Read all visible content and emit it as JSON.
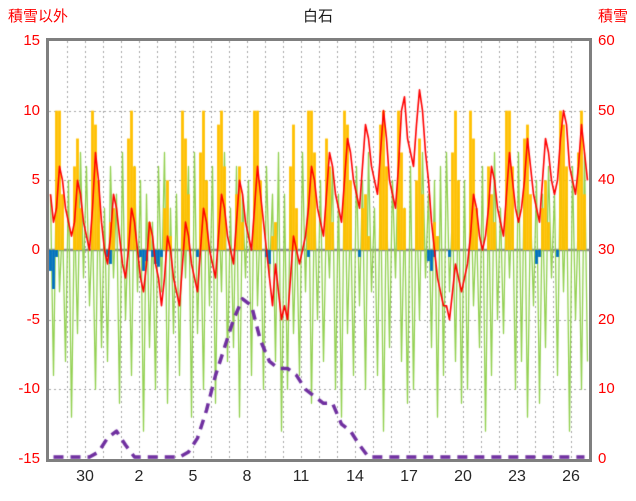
{
  "header": {
    "left_axis_label": "積雪以外",
    "title": "白石",
    "right_axis_label": "積雪"
  },
  "colors": {
    "frame": "#7f7f7f",
    "grid": "#a6a6a6",
    "zero_line": "#8c8c8c",
    "y_tick_text": "#ff0000",
    "x_tick_text": "#262626",
    "temperature": "#ff0000",
    "green_series": "#92d050",
    "sunshine": "#ffc000",
    "precipitation": "#0070c0",
    "snow_depth": "#7030a0"
  },
  "chart_data": {
    "type": "line",
    "title": "白石",
    "left_axis_label": "積雪以外",
    "right_axis_label": "積雪",
    "left_ylim": [
      -15,
      15
    ],
    "right_ylim": [
      0,
      60
    ],
    "left_ticks": [
      15,
      10,
      5,
      0,
      -5,
      -10,
      -15
    ],
    "right_ticks": [
      60,
      50,
      40,
      30,
      20,
      10,
      0
    ],
    "x_tick_labels": [
      "30",
      "2",
      "5",
      "8",
      "11",
      "14",
      "17",
      "20",
      "23",
      "26"
    ],
    "x_tick_day_indices": [
      2,
      5,
      8,
      11,
      14,
      17,
      20,
      23,
      26,
      29
    ],
    "days_total": 30,
    "grid": "daily-vertical-dashed, 5-unit-horizontal-dashed, solid-zero-line",
    "legend_position": "none",
    "series": [
      {
        "name": "green-series",
        "type": "line",
        "axis": "left",
        "points_per_day": 6,
        "values": [
          4,
          -9,
          6,
          -3,
          2,
          -8,
          5,
          -12,
          3,
          -6,
          7,
          -2,
          6,
          -4,
          2,
          -10,
          5,
          -7,
          3,
          -8,
          6,
          -2,
          4,
          -11,
          7,
          -5,
          2,
          -9,
          6,
          -3,
          5,
          -13,
          4,
          -7,
          2,
          -10,
          6,
          -3,
          7,
          -11,
          3,
          -6,
          4,
          -9,
          5,
          -2,
          6,
          -12,
          7,
          -6,
          3,
          -10,
          5,
          -4,
          6,
          -11,
          4,
          -3,
          7,
          -8,
          3,
          -7,
          6,
          -12,
          4,
          -2,
          5,
          -9,
          7,
          -4,
          3,
          -10,
          6,
          -2,
          4,
          -8,
          7,
          -13,
          4,
          -10,
          5,
          -6,
          2,
          -9,
          7,
          -3,
          6,
          -11,
          4,
          -5,
          5,
          -8,
          3,
          -2,
          6,
          -10,
          4,
          -12,
          7,
          -6,
          3,
          -9,
          6,
          -4,
          5,
          -10,
          7,
          -3,
          3,
          -9,
          6,
          -13,
          4,
          -7,
          5,
          -2,
          7,
          -8,
          3,
          -11,
          6,
          -10,
          4,
          -5,
          7,
          -2,
          4,
          -7,
          5,
          -12,
          6,
          -9,
          7,
          -3,
          3,
          -8,
          5,
          -11,
          5,
          -10,
          6,
          -4,
          2,
          -7,
          6,
          -13,
          4,
          -9,
          7,
          -5,
          3,
          -6,
          5,
          -2,
          4,
          -10,
          7,
          -8,
          6,
          -12,
          3,
          -4,
          5,
          -11,
          4,
          -7,
          6,
          -2,
          4,
          -9,
          7,
          -3,
          5,
          -13,
          6,
          -5,
          3,
          -10,
          7,
          -8
        ]
      },
      {
        "name": "sunshine-bars",
        "type": "bar",
        "axis": "left",
        "points_per_day": 6,
        "values": [
          0,
          0,
          10,
          10,
          4,
          0,
          0,
          0,
          6,
          8,
          3,
          0,
          0,
          0,
          10,
          9,
          5,
          0,
          0,
          0,
          2,
          3,
          0,
          0,
          0,
          0,
          8,
          10,
          6,
          0,
          0,
          0,
          0,
          2,
          0,
          0,
          0,
          0,
          3,
          5,
          1,
          0,
          0,
          0,
          10,
          8,
          4,
          0,
          0,
          0,
          7,
          10,
          5,
          0,
          0,
          0,
          9,
          10,
          6,
          0,
          0,
          0,
          4,
          6,
          2,
          0,
          0,
          0,
          10,
          10,
          5,
          0,
          0,
          0,
          1,
          2,
          0,
          0,
          0,
          0,
          6,
          9,
          3,
          0,
          0,
          0,
          10,
          10,
          7,
          0,
          0,
          0,
          8,
          6,
          2,
          0,
          0,
          0,
          10,
          9,
          5,
          0,
          0,
          0,
          3,
          4,
          1,
          0,
          0,
          0,
          9,
          10,
          6,
          0,
          0,
          0,
          10,
          7,
          3,
          0,
          0,
          0,
          5,
          8,
          4,
          0,
          0,
          0,
          2,
          1,
          0,
          0,
          0,
          0,
          7,
          10,
          5,
          0,
          0,
          0,
          10,
          8,
          3,
          0,
          0,
          0,
          6,
          4,
          2,
          0,
          0,
          0,
          10,
          10,
          6,
          0,
          0,
          0,
          8,
          9,
          4,
          0,
          0,
          0,
          3,
          5,
          2,
          0,
          0,
          0,
          10,
          9,
          6,
          0,
          0,
          0,
          7,
          10,
          4,
          0
        ]
      },
      {
        "name": "precipitation-bars",
        "type": "bar",
        "axis": "left",
        "points_per_day": 6,
        "values": [
          -1.5,
          -2.8,
          -0.5,
          0,
          0,
          0,
          0,
          0,
          0,
          0,
          0,
          0,
          0,
          0,
          0,
          0,
          0,
          0,
          0,
          -0.5,
          -1,
          0,
          0,
          0,
          0,
          0,
          0,
          0,
          0,
          0,
          -0.5,
          -1.5,
          -0.8,
          0,
          -0.5,
          -1,
          -1.2,
          -0.5,
          0,
          0,
          0,
          0,
          0,
          0,
          0,
          0,
          0,
          0,
          0,
          -0.5,
          0,
          0,
          0,
          0,
          0,
          0,
          0,
          0,
          0,
          0,
          0,
          0,
          0,
          0,
          0,
          0,
          0,
          0,
          0,
          0,
          0,
          0,
          -0.5,
          -1,
          0,
          0,
          0,
          0,
          0,
          0,
          0,
          0,
          0,
          0,
          0,
          0,
          -0.5,
          0,
          0,
          0,
          0,
          0,
          0,
          0,
          0,
          0,
          0,
          0,
          0,
          0,
          0,
          0,
          0,
          -0.5,
          0,
          0,
          0,
          0,
          0,
          0,
          0,
          0,
          0,
          0,
          0,
          0,
          0,
          0,
          0,
          0,
          0,
          0,
          0,
          0,
          0,
          0,
          -0.8,
          -1.5,
          -0.5,
          0,
          0,
          0,
          0,
          -0.5,
          0,
          0,
          0,
          0,
          0,
          0,
          0,
          0,
          0,
          0,
          0,
          0,
          0,
          0,
          0,
          0,
          0,
          0,
          0,
          0,
          0,
          0,
          0,
          0,
          0,
          0,
          0,
          0,
          -1,
          -0.5,
          0,
          0,
          0,
          0,
          0,
          -0.5,
          0,
          0,
          0,
          0,
          0,
          0,
          0,
          0,
          0,
          0
        ]
      },
      {
        "name": "temperature",
        "type": "line",
        "axis": "left",
        "points_per_day": 6,
        "values": [
          4,
          2,
          3,
          6,
          5,
          3,
          2,
          1,
          2,
          5,
          4,
          2,
          1,
          0,
          3,
          7,
          5,
          2,
          0,
          -1,
          1,
          4,
          3,
          1,
          -1,
          -2,
          0,
          3,
          2,
          0,
          -2,
          -3,
          -1,
          2,
          1,
          -1,
          -2,
          -4,
          -2,
          1,
          0,
          -2,
          -3,
          -4,
          -1,
          2,
          1,
          -1,
          -2,
          -3,
          0,
          3,
          2,
          0,
          -1,
          -2,
          1,
          4,
          3,
          1,
          0,
          -1,
          2,
          5,
          4,
          2,
          1,
          0,
          3,
          6,
          4,
          2,
          0,
          -2,
          -4,
          -1,
          -3,
          -5,
          -4,
          -5,
          -2,
          1,
          0,
          -1,
          0,
          1,
          3,
          6,
          5,
          3,
          2,
          1,
          4,
          7,
          6,
          4,
          3,
          2,
          5,
          8,
          7,
          5,
          4,
          3,
          6,
          9,
          8,
          6,
          5,
          4,
          7,
          10,
          8,
          5,
          4,
          3,
          6,
          10,
          11,
          8,
          7,
          6,
          9,
          11.5,
          10,
          7,
          5,
          2,
          0,
          -2,
          -3,
          -4,
          -4,
          -5,
          -3,
          -1,
          -2,
          -3,
          -2,
          -1,
          1,
          4,
          3,
          1,
          0,
          1,
          3,
          6,
          5,
          3,
          2,
          1,
          4,
          7,
          5,
          3,
          2,
          3,
          5,
          8,
          6,
          4,
          3,
          2,
          5,
          8,
          7,
          5,
          4,
          5,
          8,
          10,
          9,
          6,
          5,
          4,
          6,
          9,
          7,
          5
        ]
      },
      {
        "name": "snow-depth",
        "type": "dashed-line",
        "axis": "right",
        "points_per_day": 2,
        "values": [
          0,
          0,
          0,
          0,
          0,
          1,
          3,
          4,
          2,
          0,
          0,
          0,
          0,
          0,
          0,
          1,
          3,
          7,
          12,
          16,
          20,
          23,
          22,
          17,
          14,
          13,
          13,
          12,
          10,
          9,
          8,
          8,
          5,
          4,
          2,
          0,
          0,
          0,
          0,
          0,
          0,
          0,
          0,
          0,
          0,
          0,
          0,
          0,
          0,
          0,
          0,
          0,
          0,
          0,
          0,
          0,
          0,
          0,
          0,
          0
        ]
      }
    ]
  }
}
